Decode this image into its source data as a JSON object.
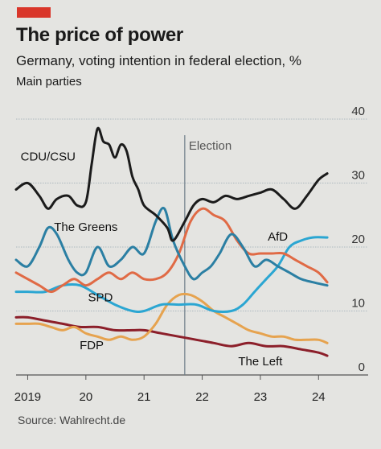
{
  "header": {
    "title": "The price of power",
    "subtitle": "Germany, voting intention in federal election, %",
    "subsubtitle": "Main parties"
  },
  "source": "Source: Wahlrecht.de",
  "chart_data": {
    "type": "line",
    "title": "The price of power",
    "subtitle": "Germany, voting intention in federal election, %",
    "ylim": [
      0,
      40
    ],
    "xlim": [
      2018.8,
      2024.3
    ],
    "y_ticks": [
      0,
      10,
      20,
      30,
      40
    ],
    "x_ticks": [
      {
        "label": "2019",
        "x": 2019.0
      },
      {
        "label": "20",
        "x": 2020.0
      },
      {
        "label": "21",
        "x": 2021.0
      },
      {
        "label": "22",
        "x": 2022.0
      },
      {
        "label": "23",
        "x": 2023.0
      },
      {
        "label": "24",
        "x": 2024.0
      }
    ],
    "grid": true,
    "annotation": {
      "label": "Election",
      "x": 2021.7
    },
    "series": [
      {
        "name": "CDU/CSU",
        "color": "#1b1b1b",
        "label_at": [
          2019.35,
          33.5
        ],
        "x": [
          2018.8,
          2019.0,
          2019.2,
          2019.35,
          2019.5,
          2019.7,
          2019.85,
          2020.0,
          2020.1,
          2020.2,
          2020.3,
          2020.4,
          2020.5,
          2020.6,
          2020.7,
          2020.8,
          2020.9,
          2021.0,
          2021.2,
          2021.4,
          2021.5,
          2021.7,
          2021.85,
          2022.0,
          2022.2,
          2022.4,
          2022.6,
          2022.8,
          2023.0,
          2023.2,
          2023.4,
          2023.6,
          2023.8,
          2024.0,
          2024.15
        ],
        "y": [
          29,
          30,
          28,
          26,
          27.5,
          28,
          26.5,
          27,
          33,
          38.5,
          36.5,
          36,
          34,
          36,
          35,
          31,
          29,
          26.5,
          25,
          23,
          21,
          24,
          26.5,
          27.5,
          27,
          28,
          27.5,
          28,
          28.5,
          29,
          27.5,
          26,
          28,
          30.5,
          31.5
        ]
      },
      {
        "name": "The Greens",
        "color": "#2b7fa3",
        "label_at": [
          2020.0,
          22.5
        ],
        "x": [
          2018.8,
          2019.0,
          2019.2,
          2019.35,
          2019.5,
          2019.7,
          2019.85,
          2020.0,
          2020.2,
          2020.4,
          2020.6,
          2020.8,
          2021.0,
          2021.2,
          2021.35,
          2021.5,
          2021.7,
          2021.85,
          2022.0,
          2022.15,
          2022.3,
          2022.5,
          2022.7,
          2022.9,
          2023.1,
          2023.3,
          2023.5,
          2023.7,
          2023.9,
          2024.15
        ],
        "y": [
          18,
          17,
          20,
          23,
          22,
          18,
          16,
          16,
          20,
          17,
          18,
          20,
          19,
          24,
          26,
          21,
          17,
          15,
          16,
          17,
          19,
          22,
          20,
          17,
          18,
          17,
          16,
          15,
          14.5,
          14
        ]
      },
      {
        "name": "AfD",
        "color": "#2ba6d2",
        "label_at": [
          2023.3,
          21
        ],
        "x": [
          2018.8,
          2019.0,
          2019.3,
          2019.6,
          2019.9,
          2020.2,
          2020.5,
          2020.8,
          2021.0,
          2021.3,
          2021.6,
          2021.9,
          2022.2,
          2022.5,
          2022.7,
          2022.9,
          2023.1,
          2023.3,
          2023.5,
          2023.7,
          2023.9,
          2024.15
        ],
        "y": [
          13,
          13,
          13,
          14,
          14,
          12.5,
          11,
          10,
          10,
          11,
          11,
          11,
          10,
          10,
          11,
          13,
          15,
          17,
          20,
          21,
          21.5,
          21.5
        ]
      },
      {
        "name": "SPD",
        "color": "#e06a45",
        "label_at": [
          2020.25,
          11.5
        ],
        "x": [
          2018.8,
          2019.0,
          2019.2,
          2019.4,
          2019.6,
          2019.8,
          2020.0,
          2020.2,
          2020.4,
          2020.6,
          2020.8,
          2021.0,
          2021.2,
          2021.4,
          2021.6,
          2021.8,
          2022.0,
          2022.2,
          2022.4,
          2022.6,
          2022.8,
          2023.0,
          2023.2,
          2023.4,
          2023.6,
          2023.8,
          2024.0,
          2024.15
        ],
        "y": [
          16,
          15,
          14,
          13,
          14,
          15,
          14,
          15,
          16,
          15,
          16,
          15,
          15,
          16,
          19,
          24,
          26,
          25,
          24,
          21,
          19,
          19,
          19,
          19,
          18,
          17,
          16,
          14.5
        ]
      },
      {
        "name": "FDP",
        "color": "#e6a34f",
        "label_at": [
          2020.1,
          4
        ],
        "x": [
          2018.8,
          2019.0,
          2019.2,
          2019.4,
          2019.6,
          2019.8,
          2020.0,
          2020.2,
          2020.4,
          2020.6,
          2020.8,
          2021.0,
          2021.2,
          2021.4,
          2021.6,
          2021.8,
          2022.0,
          2022.2,
          2022.4,
          2022.6,
          2022.8,
          2023.0,
          2023.2,
          2023.4,
          2023.6,
          2023.8,
          2024.0,
          2024.15
        ],
        "y": [
          8,
          8,
          8,
          7.5,
          7,
          7.5,
          6.5,
          6,
          5.5,
          6,
          5.5,
          6,
          8,
          11,
          12.5,
          12.5,
          11.5,
          10,
          9,
          8,
          7,
          6.5,
          6,
          6,
          5.5,
          5.5,
          5.5,
          5
        ]
      },
      {
        "name": "The Left",
        "color": "#8c1f2a",
        "label_at": [
          2023.0,
          1.5
        ],
        "x": [
          2018.8,
          2019.0,
          2019.3,
          2019.6,
          2019.9,
          2020.2,
          2020.5,
          2020.8,
          2021.0,
          2021.3,
          2021.6,
          2021.9,
          2022.2,
          2022.5,
          2022.8,
          2023.1,
          2023.4,
          2023.7,
          2024.0,
          2024.15
        ],
        "y": [
          9,
          9,
          8.5,
          8,
          7.5,
          7.5,
          7,
          7,
          7,
          6.5,
          6,
          5.5,
          5,
          4.5,
          5,
          4.5,
          4.5,
          4,
          3.5,
          3
        ]
      }
    ]
  }
}
